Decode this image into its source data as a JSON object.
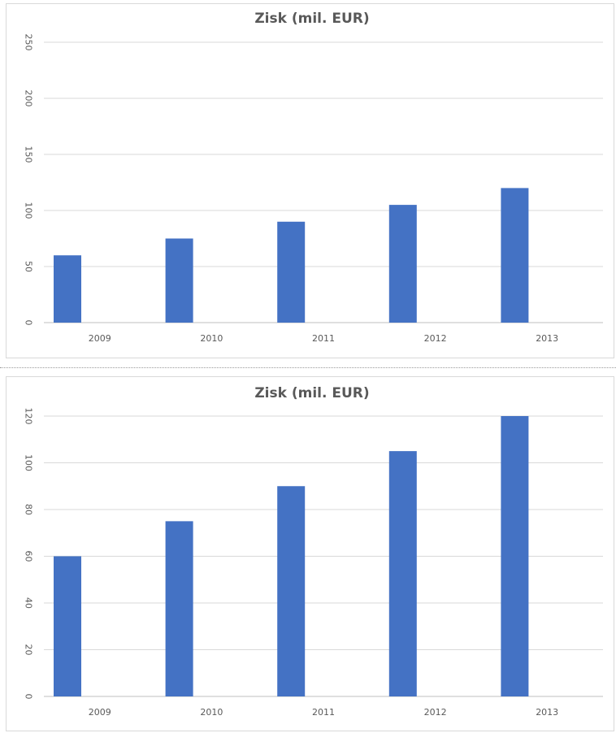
{
  "chart_data": [
    {
      "type": "bar",
      "title": "Zisk (mil. EUR)",
      "categories": [
        "2009",
        "2010",
        "2011",
        "2012",
        "2013"
      ],
      "values": [
        60,
        75,
        90,
        105,
        120
      ],
      "ylim": [
        0,
        250
      ],
      "yticks": [
        0,
        50,
        100,
        150,
        200,
        250
      ],
      "grid": true,
      "bar_color": "#4472c4"
    },
    {
      "type": "bar",
      "title": "Zisk (mil. EUR)",
      "categories": [
        "2009",
        "2010",
        "2011",
        "2012",
        "2013"
      ],
      "values": [
        60,
        75,
        90,
        105,
        120
      ],
      "ylim": [
        0,
        120
      ],
      "yticks": [
        0,
        20,
        40,
        60,
        80,
        100,
        120
      ],
      "grid": true,
      "bar_color": "#4472c4"
    }
  ]
}
